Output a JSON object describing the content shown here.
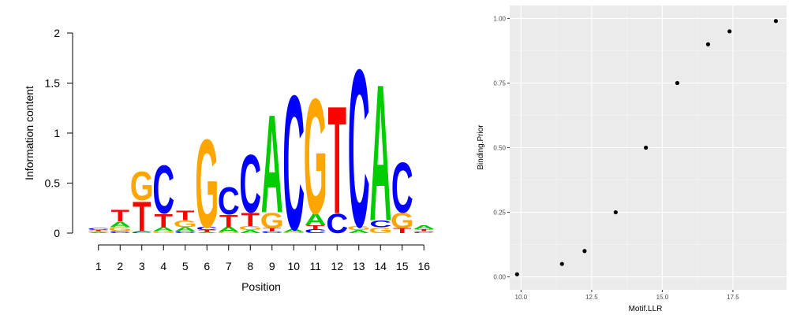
{
  "chart_data": [
    {
      "type": "sequence-logo",
      "title": "",
      "xlabel": "Position",
      "ylabel": "Information content",
      "ylim": [
        0,
        2
      ],
      "yticks": [
        "0",
        "0.5",
        "1",
        "1.5",
        "2"
      ],
      "positions": [
        "1",
        "2",
        "3",
        "4",
        "5",
        "6",
        "7",
        "8",
        "9",
        "10",
        "11",
        "12",
        "13",
        "14",
        "15",
        "16"
      ],
      "letter_colors": {
        "A": "#00cc00",
        "C": "#0000ff",
        "G": "#ffa500",
        "T": "#ff0000"
      },
      "columns": [
        [
          [
            "A",
            0.01
          ],
          [
            "G",
            0.01
          ],
          [
            "T",
            0.01
          ],
          [
            "C",
            0.02
          ]
        ],
        [
          [
            "C",
            0.02
          ],
          [
            "G",
            0.04
          ],
          [
            "A",
            0.06
          ],
          [
            "T",
            0.12
          ]
        ],
        [
          [
            "C",
            0.01
          ],
          [
            "A",
            0.01
          ],
          [
            "T",
            0.31
          ],
          [
            "G",
            0.3
          ]
        ],
        [
          [
            "G",
            0.02
          ],
          [
            "A",
            0.04
          ],
          [
            "T",
            0.14
          ],
          [
            "C",
            0.5
          ]
        ],
        [
          [
            "C",
            0.02
          ],
          [
            "A",
            0.04
          ],
          [
            "G",
            0.07
          ],
          [
            "T",
            0.1
          ]
        ],
        [
          [
            "A",
            0.01
          ],
          [
            "T",
            0.02
          ],
          [
            "C",
            0.03
          ],
          [
            "G",
            0.92
          ]
        ],
        [
          [
            "G",
            0.01
          ],
          [
            "A",
            0.05
          ],
          [
            "T",
            0.13
          ],
          [
            "C",
            0.28
          ]
        ],
        [
          [
            "A",
            0.03
          ],
          [
            "G",
            0.04
          ],
          [
            "T",
            0.14
          ],
          [
            "C",
            0.6
          ]
        ],
        [
          [
            "C",
            0.02
          ],
          [
            "T",
            0.03
          ],
          [
            "G",
            0.16
          ],
          [
            "A",
            1.02
          ]
        ],
        [
          [
            "G",
            0.01
          ],
          [
            "A",
            0.03
          ],
          [
            "C",
            1.4
          ]
        ],
        [
          [
            "C",
            0.04
          ],
          [
            "T",
            0.04
          ],
          [
            "A",
            0.12
          ],
          [
            "G",
            1.2
          ]
        ],
        [
          [
            "C",
            0.2
          ],
          [
            "T",
            1.12
          ]
        ],
        [
          [
            "A",
            0.03
          ],
          [
            "G",
            0.04
          ],
          [
            "C",
            1.64
          ]
        ],
        [
          [
            "G",
            0.06
          ],
          [
            "C",
            0.07
          ],
          [
            "A",
            1.42
          ]
        ],
        [
          [
            "T",
            0.05
          ],
          [
            "G",
            0.16
          ],
          [
            "C",
            0.52
          ]
        ],
        [
          [
            "C",
            0.01
          ],
          [
            "G",
            0.01
          ],
          [
            "T",
            0.02
          ],
          [
            "A",
            0.04
          ]
        ]
      ]
    },
    {
      "type": "scatter",
      "title": "",
      "xlabel": "Motif.LLR",
      "ylabel": "Binding.Prior",
      "xlim": [
        9.6,
        19.4
      ],
      "ylim": [
        -0.05,
        1.05
      ],
      "xticks": [
        "10.0",
        "12.5",
        "15.0",
        "17.5"
      ],
      "yticks": [
        "0.00",
        "0.25",
        "0.50",
        "0.75",
        "1.00"
      ],
      "grid": true,
      "points": [
        {
          "x": 9.86,
          "y": 0.01
        },
        {
          "x": 11.45,
          "y": 0.05
        },
        {
          "x": 12.25,
          "y": 0.1
        },
        {
          "x": 13.35,
          "y": 0.25
        },
        {
          "x": 14.42,
          "y": 0.5
        },
        {
          "x": 15.53,
          "y": 0.75
        },
        {
          "x": 16.62,
          "y": 0.9
        },
        {
          "x": 17.38,
          "y": 0.95
        },
        {
          "x": 19.02,
          "y": 0.99
        }
      ]
    }
  ]
}
